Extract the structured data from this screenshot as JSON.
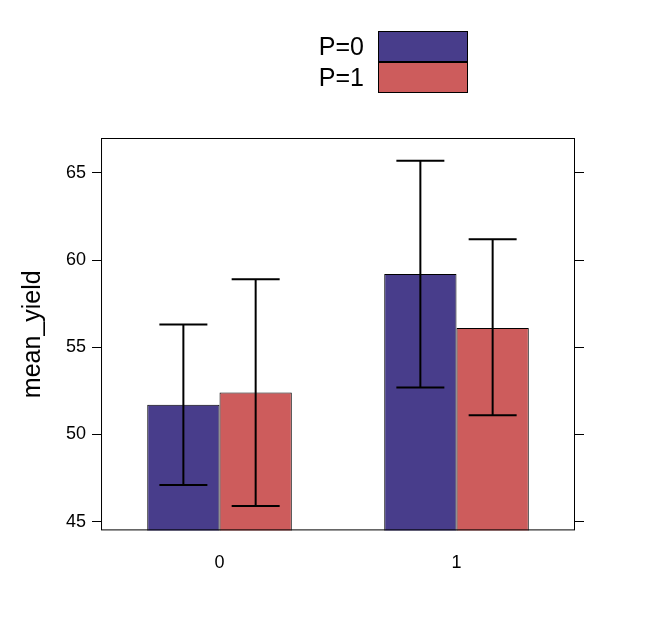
{
  "chart_data": {
    "type": "bar",
    "y_label": "mean_yield",
    "categories": [
      "0",
      "1"
    ],
    "series": [
      {
        "name": "P=0",
        "color": "#483d8b",
        "values": [
          51.7,
          59.2
        ],
        "lower": [
          47.1,
          52.7
        ],
        "upper": [
          56.3,
          65.7
        ]
      },
      {
        "name": "P=1",
        "color": "#cd5c5c",
        "values": [
          52.4,
          56.1
        ],
        "lower": [
          45.9,
          51.1
        ],
        "upper": [
          58.9,
          61.2
        ]
      }
    ],
    "ylim": [
      44.5,
      67
    ],
    "yticks": [
      45,
      50,
      55,
      60,
      65
    ],
    "grid": false,
    "legend": "top"
  }
}
